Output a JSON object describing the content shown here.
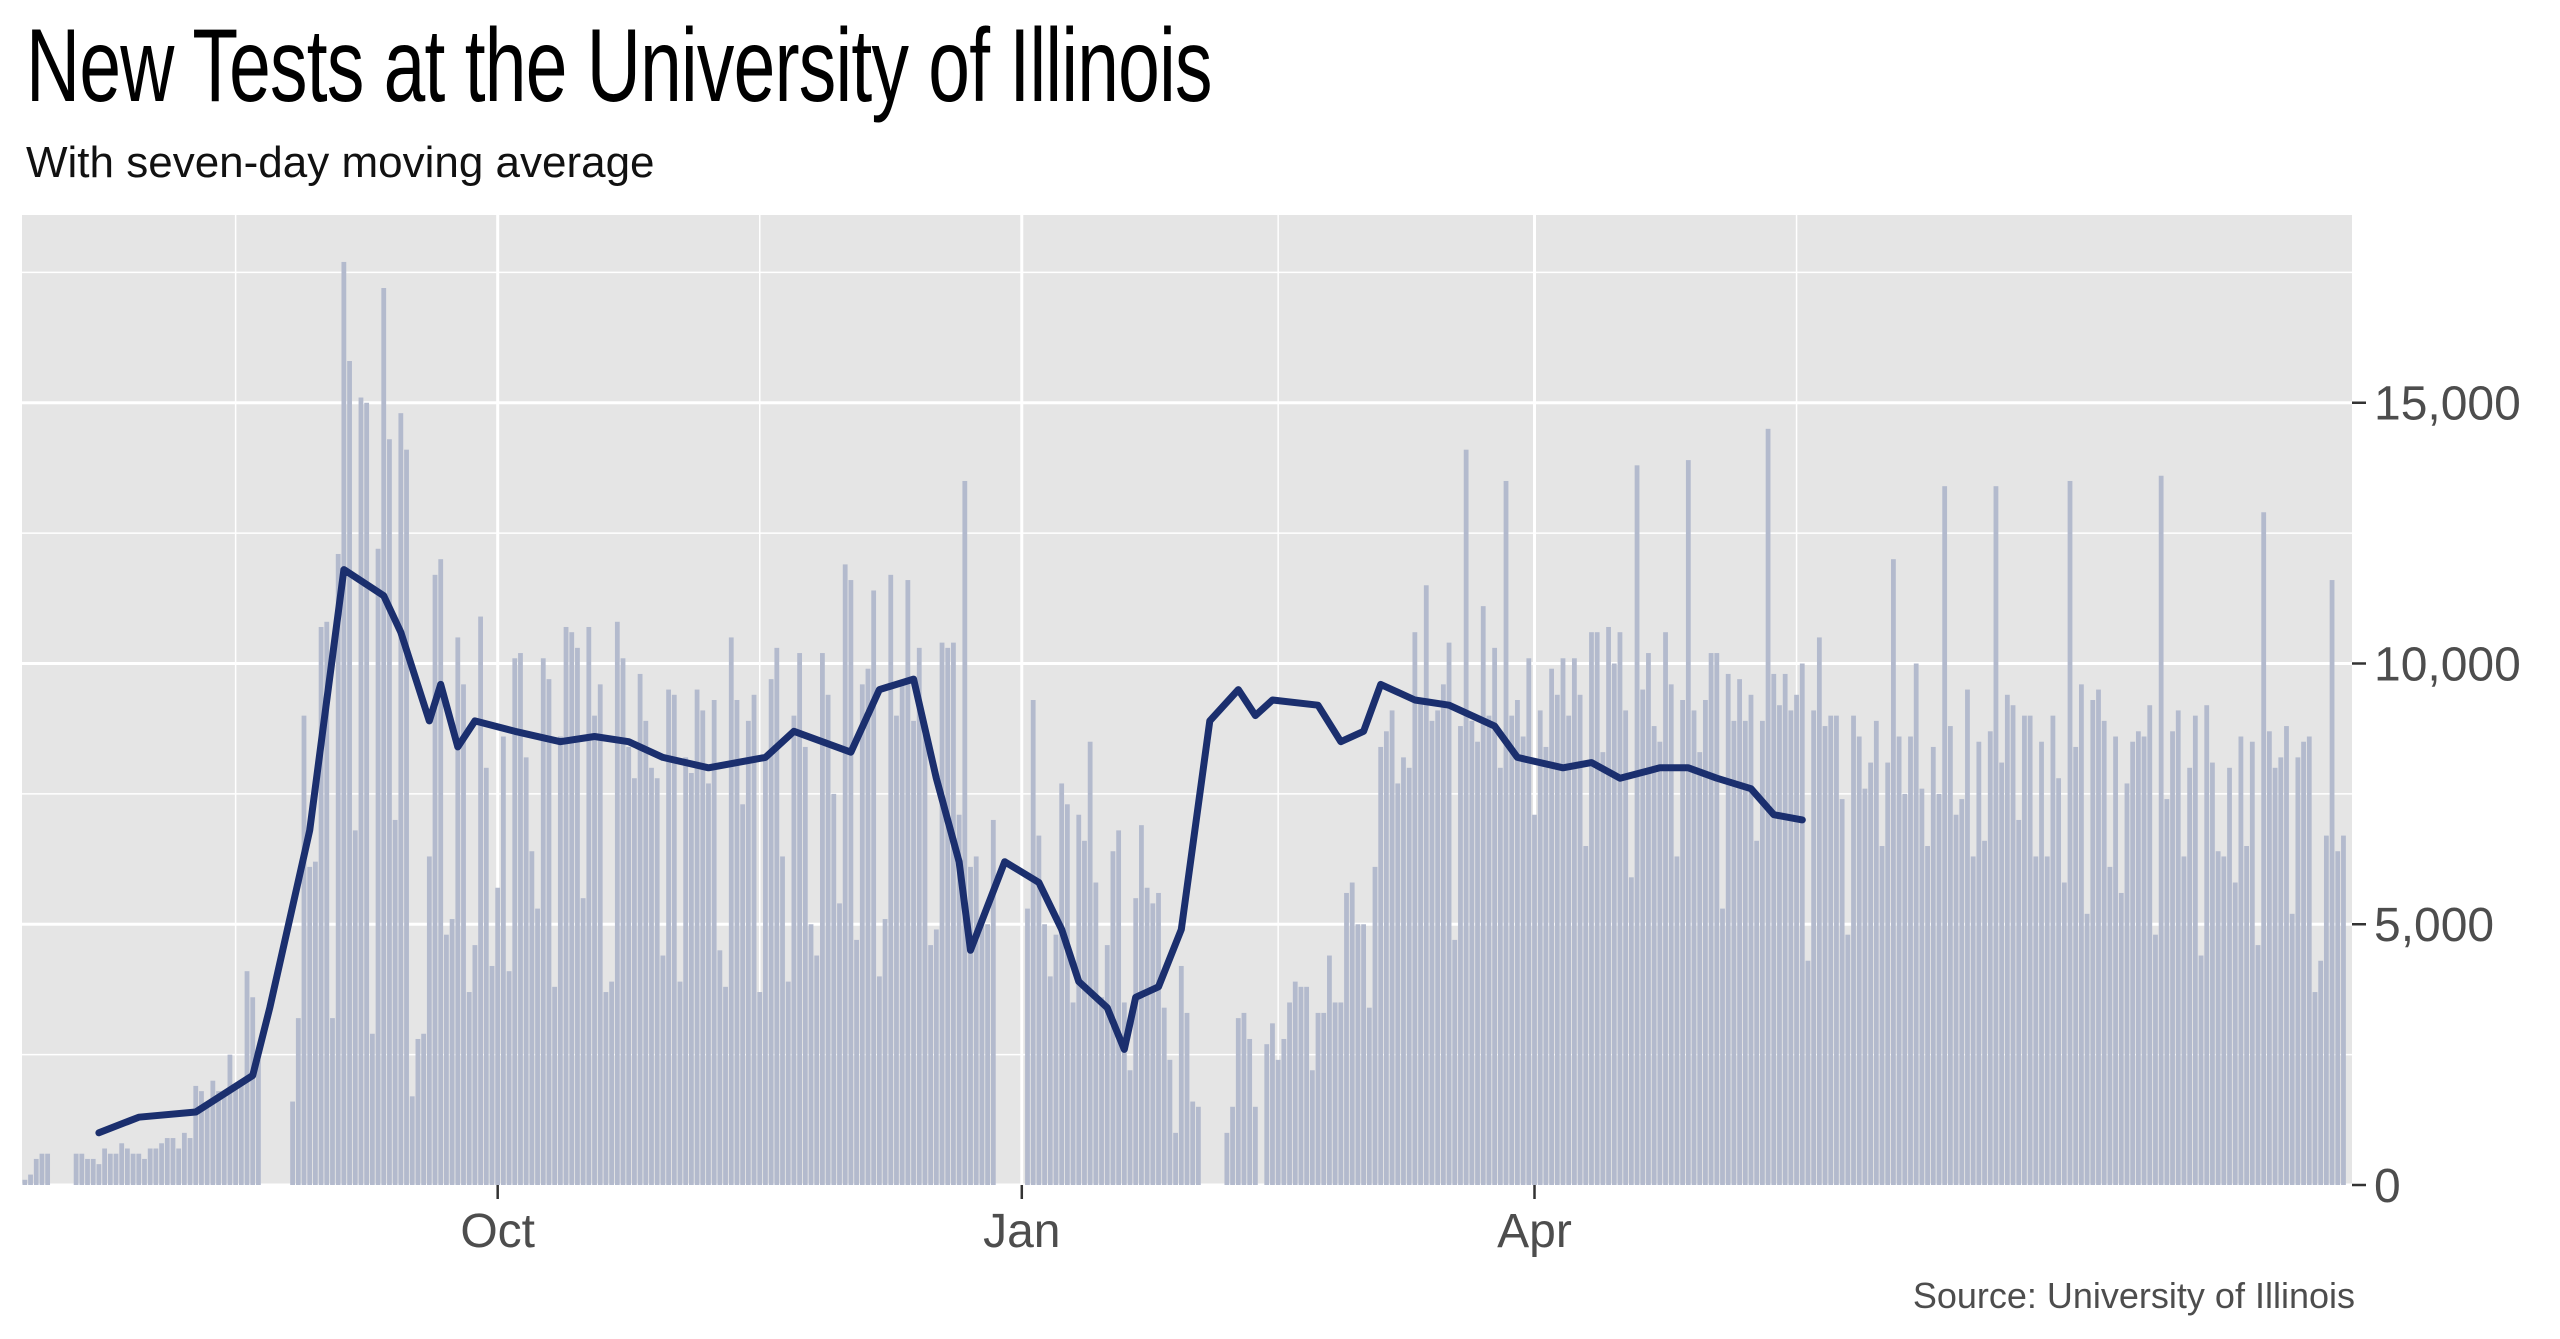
{
  "title": "New Tests at the University of Illinois",
  "subtitle": "With seven-day moving average",
  "source": "Source: University of Illinois",
  "colors": {
    "panel": "#e5e5e5",
    "grid": "#ffffff",
    "bar": "#b3bacd",
    "line": "#1b2f6e"
  },
  "chart_data": {
    "type": "bar",
    "series_type": "bar+line",
    "x_start": "2020-07-10",
    "x_ticks": [
      {
        "label": "Oct",
        "date": "2020-10-01"
      },
      {
        "label": "Jan",
        "date": "2021-01-01"
      },
      {
        "label": "Apr",
        "date": "2021-04-01"
      }
    ],
    "y_ticks": [
      {
        "label": "0",
        "value": 0
      },
      {
        "label": "5,000",
        "value": 5000
      },
      {
        "label": "10,000",
        "value": 10000
      },
      {
        "label": "15,000",
        "value": 15000
      }
    ],
    "ylim": [
      0,
      18600
    ],
    "grid": true,
    "daily_tests": [
      100,
      200,
      500,
      600,
      600,
      0,
      0,
      0,
      0,
      600,
      600,
      500,
      500,
      400,
      700,
      600,
      600,
      800,
      700,
      600,
      600,
      500,
      700,
      700,
      800,
      900,
      900,
      700,
      1000,
      900,
      1900,
      1800,
      1500,
      2000,
      1800,
      1700,
      2500,
      1900,
      2000,
      4100,
      3600,
      2400,
      0,
      0,
      0,
      0,
      0,
      1600,
      3200,
      9000,
      6100,
      6200,
      10700,
      10800,
      3200,
      12100,
      17700,
      15800,
      6800,
      15100,
      15000,
      2900,
      12200,
      17200,
      14300,
      7000,
      14800,
      14100,
      1700,
      2800,
      2900,
      6300,
      11700,
      12000,
      4800,
      5100,
      10500,
      9600,
      3700,
      4600,
      10900,
      8000,
      4200,
      5700,
      8600,
      4100,
      10100,
      10200,
      8200,
      6400,
      5300,
      10100,
      9700,
      3800,
      8600,
      10700,
      10600,
      10300,
      5500,
      10700,
      9000,
      9600,
      3700,
      3900,
      10800,
      10100,
      8400,
      7800,
      9800,
      8900,
      8000,
      7800,
      4400,
      9500,
      9400,
      3900,
      8200,
      7900,
      9500,
      9100,
      7700,
      9300,
      4500,
      3800,
      10500,
      9300,
      7300,
      8900,
      9400,
      3700,
      8200,
      9700,
      10300,
      6300,
      3900,
      9000,
      10200,
      8400,
      5000,
      4400,
      10200,
      9400,
      7500,
      5400,
      11900,
      11600,
      4700,
      9600,
      9900,
      11400,
      4000,
      5100,
      11700,
      9000,
      9600,
      11600,
      8900,
      10300,
      8700,
      4600,
      4900,
      10400,
      10300,
      10400,
      7100,
      13500,
      6100,
      6300,
      5000,
      5000,
      7000,
      0,
      0,
      0,
      0,
      0,
      5300,
      9300,
      6700,
      5000,
      4000,
      4800,
      7700,
      7300,
      3500,
      7100,
      6600,
      8500,
      5800,
      3600,
      4600,
      6400,
      6800,
      3500,
      2200,
      5500,
      6900,
      5700,
      5400,
      5600,
      3400,
      2400,
      1000,
      4200,
      3300,
      1600,
      1500,
      0,
      0,
      0,
      0,
      1000,
      1500,
      3200,
      3300,
      2800,
      1500,
      0,
      2700,
      3100,
      2400,
      2800,
      3500,
      3900,
      3800,
      3800,
      2200,
      3300,
      3300,
      4400,
      3500,
      3500,
      5600,
      5800,
      5000,
      5000,
      3400,
      6100,
      8400,
      8700,
      9100,
      7700,
      8200,
      8000,
      10600,
      9300,
      11500,
      8900,
      9100,
      9600,
      10400,
      4700,
      8800,
      14100,
      8900,
      8500,
      11100,
      9000,
      10300,
      8000,
      13500,
      9000,
      9300,
      8600,
      10100,
      7100,
      9100,
      8400,
      9900,
      9400,
      10100,
      9000,
      10100,
      9400,
      6500,
      10600,
      10600,
      8300,
      10700,
      10000,
      10600,
      9100,
      5900,
      13800,
      9500,
      10200,
      8800,
      8500,
      10600,
      9600,
      6300,
      9300,
      13900,
      9100,
      8300,
      9300,
      10200,
      10200,
      5300,
      9800,
      8900,
      9700,
      8900,
      9400,
      6600,
      8900,
      14500,
      9800,
      9200,
      9800,
      9100,
      9400,
      10000,
      4300,
      9100,
      10500,
      8800,
      9000,
      9000,
      7400,
      4800,
      9000,
      8600,
      7600,
      8100,
      8900,
      6500,
      8100,
      12000,
      8600,
      7500,
      8600,
      10000,
      7600,
      6500,
      8400,
      7500,
      13400,
      8800,
      7100,
      7400,
      9500,
      6300,
      8500,
      6600,
      8700,
      13400,
      8100,
      9400,
      9200,
      7000,
      9000,
      9000,
      6300,
      8500,
      6300,
      9000,
      7800,
      5800,
      13500,
      8400,
      9600,
      5200,
      9300,
      9500,
      8900,
      6100,
      8600,
      5600,
      7700,
      8500,
      8700,
      8600,
      9200,
      4800,
      13600,
      7400,
      8700,
      9100,
      6300,
      8000,
      9000,
      4400,
      9200,
      8100,
      6400,
      6300,
      8000,
      5800,
      8600,
      6500,
      8500,
      4600,
      12900,
      8700,
      8000,
      8200,
      8800,
      5200,
      8200,
      8500,
      8600,
      3700,
      4300,
      6700,
      11600,
      6400,
      6700
    ],
    "moving_avg": [
      {
        "day": 13,
        "value": 1000
      },
      {
        "day": 20,
        "value": 1300
      },
      {
        "day": 30,
        "value": 1400
      },
      {
        "day": 40,
        "value": 2100
      },
      {
        "day": 43,
        "value": 3400
      },
      {
        "day": 50,
        "value": 6800
      },
      {
        "day": 56,
        "value": 11800
      },
      {
        "day": 63,
        "value": 11300
      },
      {
        "day": 66,
        "value": 10600
      },
      {
        "day": 71,
        "value": 8900
      },
      {
        "day": 73,
        "value": 9600
      },
      {
        "day": 76,
        "value": 8400
      },
      {
        "day": 79,
        "value": 8900
      },
      {
        "day": 86,
        "value": 8700
      },
      {
        "day": 94,
        "value": 8500
      },
      {
        "day": 100,
        "value": 8600
      },
      {
        "day": 106,
        "value": 8500
      },
      {
        "day": 112,
        "value": 8200
      },
      {
        "day": 120,
        "value": 8000
      },
      {
        "day": 130,
        "value": 8200
      },
      {
        "day": 135,
        "value": 8700
      },
      {
        "day": 145,
        "value": 8300
      },
      {
        "day": 150,
        "value": 9500
      },
      {
        "day": 156,
        "value": 9700
      },
      {
        "day": 160,
        "value": 7800
      },
      {
        "day": 164,
        "value": 6200
      },
      {
        "day": 166,
        "value": 4500
      },
      {
        "day": 172,
        "value": 6200
      },
      {
        "day": 178,
        "value": 5800
      },
      {
        "day": 182,
        "value": 4900
      },
      {
        "day": 185,
        "value": 3900
      },
      {
        "day": 190,
        "value": 3400
      },
      {
        "day": 193,
        "value": 2600
      },
      {
        "day": 195,
        "value": 3600
      },
      {
        "day": 199,
        "value": 3800
      },
      {
        "day": 203,
        "value": 4900
      },
      {
        "day": 208,
        "value": 8900
      },
      {
        "day": 213,
        "value": 9500
      },
      {
        "day": 216,
        "value": 9000
      },
      {
        "day": 219,
        "value": 9300
      },
      {
        "day": 227,
        "value": 9200
      },
      {
        "day": 231,
        "value": 8500
      },
      {
        "day": 235,
        "value": 8700
      },
      {
        "day": 238,
        "value": 9600
      },
      {
        "day": 244,
        "value": 9300
      },
      {
        "day": 250,
        "value": 9200
      },
      {
        "day": 258,
        "value": 8800
      },
      {
        "day": 262,
        "value": 8200
      },
      {
        "day": 270,
        "value": 8000
      },
      {
        "day": 275,
        "value": 8100
      },
      {
        "day": 280,
        "value": 7800
      },
      {
        "day": 287,
        "value": 8000
      },
      {
        "day": 292,
        "value": 8000
      },
      {
        "day": 297,
        "value": 7800
      },
      {
        "day": 303,
        "value": 7600
      },
      {
        "day": 307,
        "value": 7100
      },
      {
        "day": 312,
        "value": 7000
      }
    ]
  }
}
